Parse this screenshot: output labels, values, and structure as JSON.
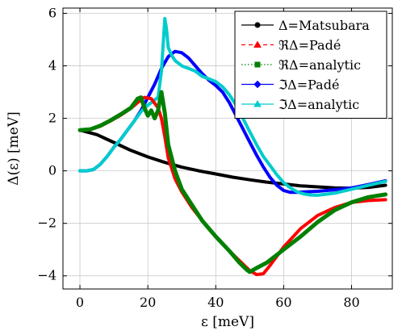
{
  "chart_data": {
    "type": "line",
    "xlabel": "ε [meV]",
    "ylabel": "Δ(ε) [meV]",
    "xlim": [
      -5,
      92
    ],
    "ylim": [
      -4.5,
      6.2
    ],
    "xticks": [
      0,
      20,
      40,
      60,
      80
    ],
    "yticks": [
      -4,
      -2,
      0,
      2,
      4,
      6
    ],
    "xtick_labels": [
      "0",
      "20",
      "40",
      "60",
      "80"
    ],
    "ytick_labels": [
      "−4",
      "−2",
      "0",
      "2",
      "4",
      "6"
    ],
    "grid": true,
    "legend_position": "top-right",
    "series": [
      {
        "name": "Δ=Matsubara",
        "color": "#000000",
        "style": "solid-thick",
        "marker": "circle",
        "x": [
          0,
          5,
          10,
          15,
          20,
          25,
          30,
          35,
          40,
          45,
          50,
          55,
          60,
          65,
          70,
          75,
          80,
          85,
          90
        ],
        "y": [
          1.55,
          1.38,
          1.08,
          0.78,
          0.53,
          0.32,
          0.14,
          0.0,
          -0.12,
          -0.24,
          -0.34,
          -0.43,
          -0.5,
          -0.57,
          -0.61,
          -0.65,
          -0.66,
          -0.63,
          -0.55
        ]
      },
      {
        "name": "ℜΔ=Padé",
        "color": "#ff0000",
        "style": "dashed-thick",
        "marker": "triangle",
        "x": [
          0,
          3,
          6,
          9,
          12,
          15,
          17,
          19,
          21,
          23,
          24,
          25,
          26,
          28,
          30,
          33,
          36,
          40,
          44,
          48,
          50,
          52,
          54,
          56,
          60,
          65,
          70,
          75,
          80,
          85,
          90
        ],
        "y": [
          1.55,
          1.57,
          1.7,
          1.9,
          2.12,
          2.38,
          2.6,
          2.8,
          2.75,
          2.4,
          2.0,
          1.3,
          0.5,
          -0.3,
          -0.8,
          -1.4,
          -1.9,
          -2.5,
          -3.05,
          -3.55,
          -3.8,
          -3.95,
          -3.92,
          -3.6,
          -2.9,
          -2.2,
          -1.7,
          -1.4,
          -1.2,
          -1.13,
          -1.1
        ]
      },
      {
        "name": "ℜΔ=analytic",
        "color": "#008000",
        "style": "dotted-thick",
        "marker": "square",
        "x": [
          0,
          3,
          6,
          9,
          12,
          15,
          17,
          18,
          19,
          20,
          21,
          22,
          23,
          24,
          25,
          26,
          28,
          30,
          33,
          36,
          40,
          44,
          47,
          49,
          50,
          52,
          55,
          60,
          65,
          70,
          75,
          80,
          85,
          90
        ],
        "y": [
          1.55,
          1.58,
          1.72,
          1.92,
          2.15,
          2.4,
          2.75,
          2.8,
          2.4,
          2.1,
          2.3,
          2.0,
          2.3,
          3.0,
          2.2,
          1.0,
          0.0,
          -0.7,
          -1.3,
          -1.9,
          -2.5,
          -3.05,
          -3.5,
          -3.75,
          -3.85,
          -3.7,
          -3.5,
          -3.0,
          -2.5,
          -1.95,
          -1.5,
          -1.2,
          -1.0,
          -0.9
        ]
      },
      {
        "name": "ℑΔ=Padé",
        "color": "#0000ff",
        "style": "solid-thick",
        "marker": "diamond",
        "x": [
          0,
          2,
          4,
          6,
          8,
          10,
          12,
          14,
          16,
          18,
          20,
          22,
          24,
          26,
          28,
          30,
          32,
          34,
          36,
          38,
          40,
          42,
          44,
          46,
          48,
          50,
          52,
          54,
          56,
          58,
          60,
          62,
          64,
          66,
          70,
          75,
          80,
          85,
          90
        ],
        "y": [
          0.0,
          0.0,
          0.05,
          0.25,
          0.55,
          0.9,
          1.2,
          1.55,
          1.9,
          2.3,
          2.8,
          3.3,
          3.9,
          4.35,
          4.55,
          4.5,
          4.3,
          4.0,
          3.7,
          3.45,
          3.25,
          3.0,
          2.6,
          2.1,
          1.6,
          1.1,
          0.6,
          0.15,
          -0.25,
          -0.55,
          -0.75,
          -0.82,
          -0.82,
          -0.8,
          -0.78,
          -0.72,
          -0.65,
          -0.52,
          -0.38
        ]
      },
      {
        "name": "ℑΔ=analytic",
        "color": "#00cccc",
        "style": "solid-thick",
        "marker": "triangle",
        "x": [
          0,
          2,
          4,
          6,
          8,
          10,
          12,
          14,
          16,
          18,
          19,
          20,
          21,
          22,
          23,
          24,
          25,
          25.5,
          26,
          27,
          28,
          30,
          32,
          34,
          36,
          38,
          40,
          42,
          44,
          46,
          48,
          50,
          52,
          54,
          56,
          58,
          60,
          62,
          64,
          66,
          68,
          70,
          75,
          80,
          85,
          90
        ],
        "y": [
          0.0,
          0.0,
          0.05,
          0.25,
          0.55,
          0.9,
          1.2,
          1.55,
          1.9,
          2.25,
          2.4,
          2.5,
          2.6,
          2.7,
          2.8,
          3.8,
          5.8,
          5.4,
          4.7,
          4.4,
          4.2,
          4.0,
          3.9,
          3.8,
          3.6,
          3.5,
          3.4,
          3.2,
          2.9,
          2.5,
          2.0,
          1.5,
          1.0,
          0.55,
          0.2,
          -0.15,
          -0.45,
          -0.65,
          -0.8,
          -0.88,
          -0.92,
          -0.93,
          -0.85,
          -0.7,
          -0.55,
          -0.4
        ]
      }
    ]
  }
}
